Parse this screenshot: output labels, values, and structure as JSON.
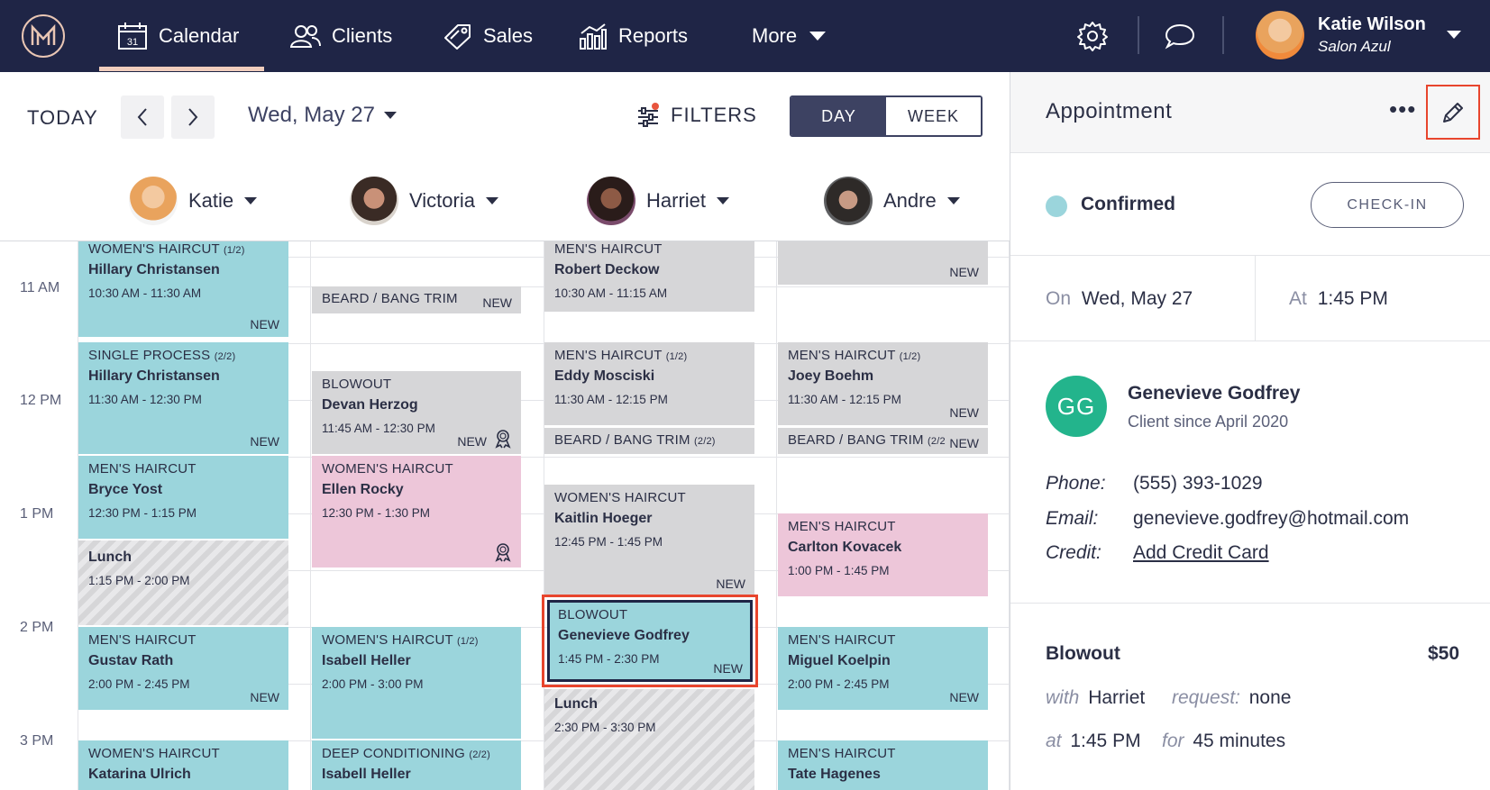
{
  "nav": {
    "items": [
      {
        "label": "Calendar",
        "icon": "calendar-icon"
      },
      {
        "label": "Clients",
        "icon": "clients-icon"
      },
      {
        "label": "Sales",
        "icon": "tag-icon"
      },
      {
        "label": "Reports",
        "icon": "chart-icon"
      },
      {
        "label": "More",
        "icon": "chevron-down-icon"
      }
    ],
    "calendar_day_number": "31",
    "user": {
      "name": "Katie Wilson",
      "salon": "Salon Azul"
    }
  },
  "toolbar": {
    "today": "TODAY",
    "date": "Wed, May 27",
    "filters": "FILTERS",
    "view_day": "DAY",
    "view_week": "WEEK"
  },
  "staff": [
    {
      "name": "Katie"
    },
    {
      "name": "Victoria"
    },
    {
      "name": "Harriet"
    },
    {
      "name": "Andre"
    }
  ],
  "times": [
    "11 AM",
    "12 PM",
    "1 PM",
    "2 PM",
    "3 PM"
  ],
  "appointments": {
    "katie": [
      {
        "service": "WOMEN'S HAIRCUT",
        "part": "(1/2)",
        "client": "Hillary Christansen",
        "time": "10:30 AM - 11:30 AM",
        "tag": "NEW"
      },
      {
        "service": "SINGLE PROCESS",
        "part": "(2/2)",
        "client": "Hillary Christansen",
        "time": "11:30 AM - 12:30 PM",
        "tag": "NEW"
      },
      {
        "service": "MEN'S HAIRCUT",
        "part": "",
        "client": "Bryce Yost",
        "time": "12:30 PM - 1:15 PM",
        "tag": ""
      },
      {
        "service": "",
        "part": "",
        "client": "Lunch",
        "time": "1:15 PM - 2:00 PM",
        "tag": ""
      },
      {
        "service": "MEN'S HAIRCUT",
        "part": "",
        "client": "Gustav Rath",
        "time": "2:00 PM - 2:45 PM",
        "tag": "NEW"
      },
      {
        "service": "WOMEN'S HAIRCUT",
        "part": "",
        "client": "Katarina Ulrich",
        "time": "",
        "tag": ""
      }
    ],
    "victoria": [
      {
        "service": "BEARD / BANG TRIM",
        "part": "",
        "client": "",
        "time": "",
        "tag": "NEW"
      },
      {
        "service": "BLOWOUT",
        "part": "",
        "client": "Devan Herzog",
        "time": "11:45 AM - 12:30 PM",
        "tag": "NEW"
      },
      {
        "service": "WOMEN'S HAIRCUT",
        "part": "",
        "client": "Ellen Rocky",
        "time": "12:30 PM - 1:30 PM",
        "tag": ""
      },
      {
        "service": "WOMEN'S HAIRCUT",
        "part": "(1/2)",
        "client": "Isabell Heller",
        "time": "2:00 PM - 3:00 PM",
        "tag": ""
      },
      {
        "service": "DEEP CONDITIONING",
        "part": "(2/2)",
        "client": "Isabell Heller",
        "time": "",
        "tag": ""
      }
    ],
    "harriet": [
      {
        "service": "MEN'S HAIRCUT",
        "part": "",
        "client": "Robert Deckow",
        "time": "10:30 AM - 11:15 AM",
        "tag": ""
      },
      {
        "service": "MEN'S HAIRCUT",
        "part": "(1/2)",
        "client": "Eddy Mosciski",
        "time": "11:30 AM - 12:15 PM",
        "tag": ""
      },
      {
        "service": "BEARD / BANG TRIM",
        "part": "(2/2)",
        "client": "",
        "time": "",
        "tag": ""
      },
      {
        "service": "WOMEN'S HAIRCUT",
        "part": "",
        "client": "Kaitlin Hoeger",
        "time": "12:45 PM - 1:45 PM",
        "tag": "NEW"
      },
      {
        "service": "BLOWOUT",
        "part": "",
        "client": "Genevieve Godfrey",
        "time": "1:45 PM - 2:30 PM",
        "tag": "NEW"
      },
      {
        "service": "",
        "part": "",
        "client": "Lunch",
        "time": "2:30 PM - 3:30 PM",
        "tag": ""
      }
    ],
    "andre": [
      {
        "service": "",
        "part": "",
        "client": "",
        "time": "",
        "tag": "NEW"
      },
      {
        "service": "MEN'S HAIRCUT",
        "part": "(1/2)",
        "client": "Joey Boehm",
        "time": "11:30 AM - 12:15 PM",
        "tag": "NEW"
      },
      {
        "service": "BEARD / BANG TRIM",
        "part": "(2/2",
        "client": "",
        "time": "",
        "tag": "NEW"
      },
      {
        "service": "MEN'S HAIRCUT",
        "part": "",
        "client": "Carlton Kovacek",
        "time": "1:00 PM - 1:45 PM",
        "tag": ""
      },
      {
        "service": "MEN'S HAIRCUT",
        "part": "",
        "client": "Miguel Koelpin",
        "time": "2:00 PM - 2:45 PM",
        "tag": "NEW"
      },
      {
        "service": "MEN'S HAIRCUT",
        "part": "",
        "client": "Tate Hagenes",
        "time": "",
        "tag": ""
      }
    ]
  },
  "panel": {
    "title": "Appointment",
    "more": "•••",
    "status": "Confirmed",
    "checkin": "CHECK-IN",
    "on_label": "On",
    "on_value": "Wed, May 27",
    "at_label": "At",
    "at_value": "1:45 PM",
    "client": {
      "initials": "GG",
      "name": "Genevieve Godfrey",
      "since": "Client since April 2020"
    },
    "phone_label": "Phone:",
    "phone": "(555) 393-1029",
    "email_label": "Email:",
    "email": "genevieve.godfrey@hotmail.com",
    "credit_label": "Credit:",
    "credit_link": "Add Credit Card",
    "service": "Blowout",
    "price": "$50",
    "with_label": "with",
    "with_value": "Harriet",
    "request_label": "request:",
    "request_value": "none",
    "at2_label": "at",
    "at2_value": "1:45 PM",
    "for_label": "for",
    "for_value": "45 minutes"
  },
  "colors": {
    "nav_bg": "#1f2546",
    "teal": "#9bd5dc",
    "pink": "#edc6d9",
    "gray": "#d6d6d8",
    "highlight": "#e8452d",
    "avatar_green": "#23b48c"
  }
}
